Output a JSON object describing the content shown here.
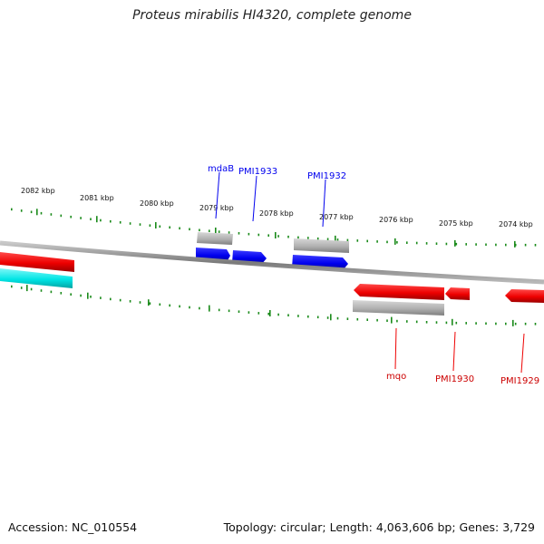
{
  "title": "Proteus mirabilis HI4320, complete genome",
  "footer": {
    "accession": "Accession: NC_010554",
    "summary": "Topology: circular; Length: 4,063,606 bp; Genes: 3,729"
  },
  "colors": {
    "forward_gene": "#0000ee",
    "reverse_gene": "#ee0000",
    "rna_feature": "#00e5e5",
    "other_feature": "#b0b0b0",
    "tick": "#1a8a1a",
    "backbone": "#808080"
  },
  "upper_scale": [
    {
      "label": "2082 kbp"
    },
    {
      "label": "2081 kbp"
    },
    {
      "label": "2080 kbp"
    },
    {
      "label": "2079 kbp"
    },
    {
      "label": "2078 kbp"
    },
    {
      "label": "2077 kbp"
    },
    {
      "label": "2076 kbp"
    },
    {
      "label": "2075 kbp"
    },
    {
      "label": "2074 kbp"
    }
  ],
  "gene_labels": [
    {
      "name": "mdaB",
      "strand": "forward"
    },
    {
      "name": "PMI1933",
      "strand": "forward"
    },
    {
      "name": "PMI1932",
      "strand": "forward"
    },
    {
      "name": "mqo",
      "strand": "reverse"
    },
    {
      "name": "PMI1930",
      "strand": "reverse"
    },
    {
      "name": "PMI1929",
      "strand": "reverse"
    }
  ]
}
